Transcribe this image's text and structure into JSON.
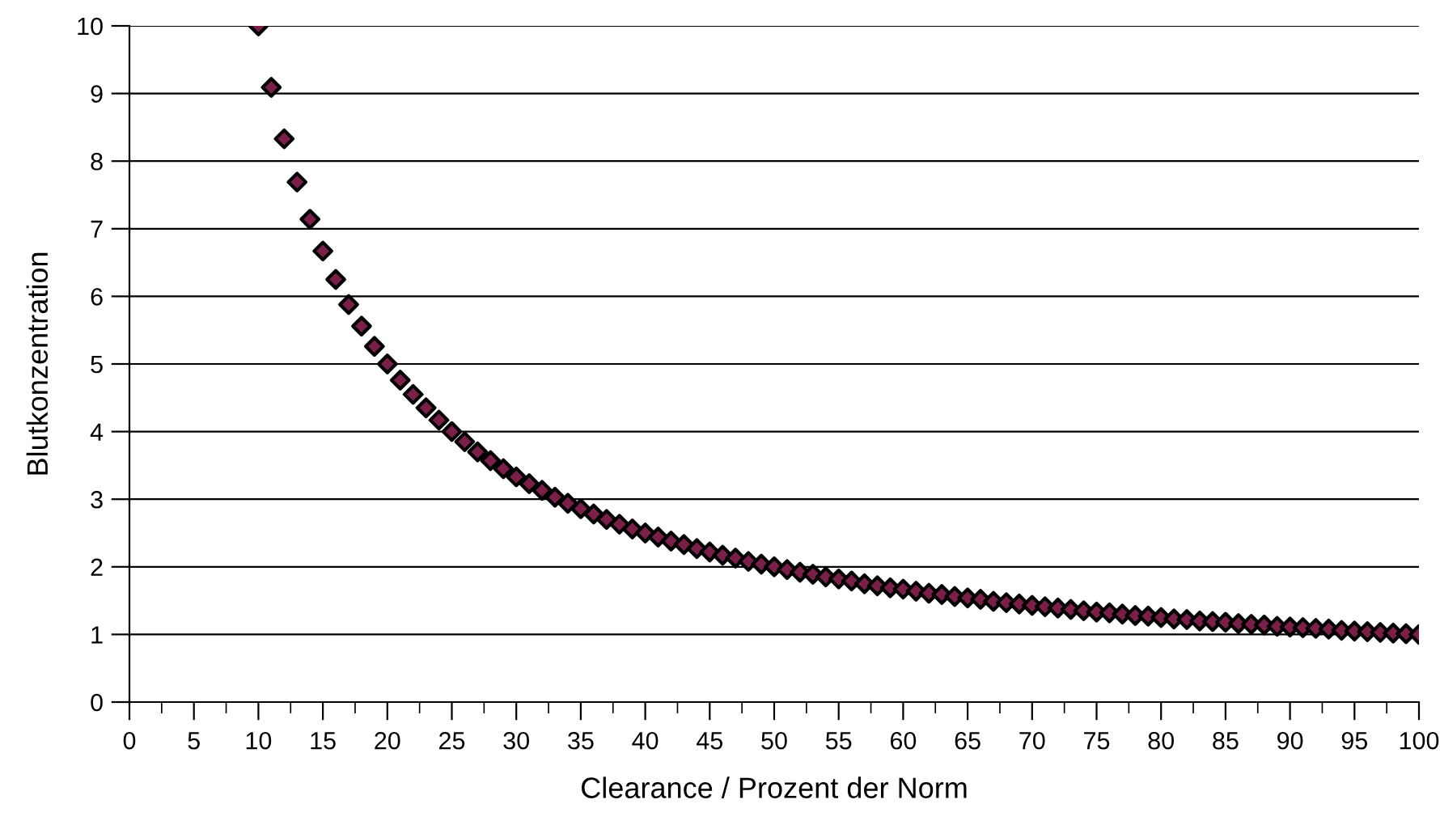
{
  "chart_data": {
    "type": "scatter",
    "xlabel": "Clearance / Prozent der Norm",
    "ylabel": "Blutkonzentration",
    "x": [
      10,
      11,
      12,
      13,
      14,
      15,
      16,
      17,
      18,
      19,
      20,
      21,
      22,
      23,
      24,
      25,
      26,
      27,
      28,
      29,
      30,
      31,
      32,
      33,
      34,
      35,
      36,
      37,
      38,
      39,
      40,
      41,
      42,
      43,
      44,
      45,
      46,
      47,
      48,
      49,
      50,
      51,
      52,
      53,
      54,
      55,
      56,
      57,
      58,
      59,
      60,
      61,
      62,
      63,
      64,
      65,
      66,
      67,
      68,
      69,
      70,
      71,
      72,
      73,
      74,
      75,
      76,
      77,
      78,
      79,
      80,
      81,
      82,
      83,
      84,
      85,
      86,
      87,
      88,
      89,
      90,
      91,
      92,
      93,
      94,
      95,
      96,
      97,
      98,
      99,
      100
    ],
    "series": [
      {
        "color": "#000000",
        "values": [
          10,
          9.09,
          8.33,
          7.69,
          7.14,
          6.67,
          6.25,
          5.88,
          5.56,
          5.26,
          5,
          4.76,
          4.55,
          4.35,
          4.17,
          4,
          3.85,
          3.7,
          3.57,
          3.45,
          3.33,
          3.23,
          3.13,
          3.03,
          2.94,
          2.86,
          2.78,
          2.7,
          2.63,
          2.56,
          2.5,
          2.44,
          2.38,
          2.33,
          2.27,
          2.22,
          2.17,
          2.13,
          2.08,
          2.04,
          2,
          1.96,
          1.92,
          1.89,
          1.85,
          1.82,
          1.79,
          1.75,
          1.72,
          1.69,
          1.67,
          1.64,
          1.61,
          1.59,
          1.56,
          1.54,
          1.52,
          1.49,
          1.47,
          1.45,
          1.43,
          1.41,
          1.39,
          1.37,
          1.35,
          1.33,
          1.32,
          1.3,
          1.28,
          1.27,
          1.25,
          1.23,
          1.22,
          1.2,
          1.19,
          1.18,
          1.16,
          1.15,
          1.14,
          1.12,
          1.11,
          1.1,
          1.09,
          1.08,
          1.06,
          1.05,
          1.04,
          1.03,
          1.02,
          1.01,
          1
        ]
      }
    ],
    "marker": "diamond",
    "xlim": [
      0,
      100
    ],
    "xticks": [
      0,
      5,
      10,
      15,
      20,
      25,
      30,
      35,
      40,
      45,
      50,
      55,
      60,
      65,
      70,
      75,
      80,
      85,
      90,
      95,
      100
    ],
    "ylim": [
      0,
      10
    ],
    "yticks": [
      0,
      1,
      2,
      3,
      4,
      5,
      6,
      7,
      8,
      9,
      10
    ],
    "grid": "y"
  }
}
